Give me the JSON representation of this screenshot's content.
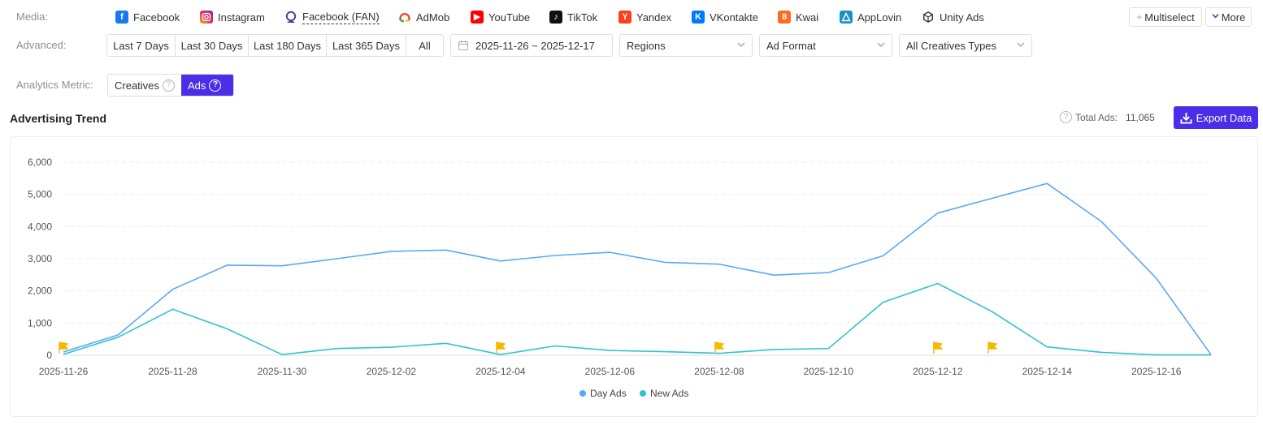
{
  "media": {
    "label": "Media:",
    "items": [
      {
        "key": "facebook",
        "label": "Facebook",
        "icon": "facebook-icon",
        "color": "#1877f2",
        "glyph": "f"
      },
      {
        "key": "instagram",
        "label": "Instagram",
        "icon": "instagram-icon",
        "color": "#e1306c",
        "glyph": "◎"
      },
      {
        "key": "facebook-fan",
        "label": "Facebook (FAN)",
        "icon": "fan-icon",
        "color": "#4b3f9e",
        "glyph": ""
      },
      {
        "key": "admob",
        "label": "AdMob",
        "icon": "admob-icon",
        "color": "#ea4335",
        "glyph": ""
      },
      {
        "key": "youtube",
        "label": "YouTube",
        "icon": "youtube-icon",
        "color": "#ff0000",
        "glyph": "▶"
      },
      {
        "key": "tiktok",
        "label": "TikTok",
        "icon": "tiktok-icon",
        "color": "#111111",
        "glyph": "♪"
      },
      {
        "key": "yandex",
        "label": "Yandex",
        "icon": "yandex-icon",
        "color": "#fc3f1d",
        "glyph": "Y"
      },
      {
        "key": "vkontakte",
        "label": "VKontakte",
        "icon": "vk-icon",
        "color": "#0077ff",
        "glyph": "K"
      },
      {
        "key": "kwai",
        "label": "Kwai",
        "icon": "kwai-icon",
        "color": "#ff6a1f",
        "glyph": "8"
      },
      {
        "key": "applovin",
        "label": "AppLovin",
        "icon": "applovin-icon",
        "color": "#1c8fc9",
        "glyph": "▲"
      },
      {
        "key": "unity",
        "label": "Unity Ads",
        "icon": "unity-icon",
        "color": "#222222",
        "glyph": "◁"
      }
    ],
    "multiselect_label": "Multiselect",
    "more_label": "More"
  },
  "advanced": {
    "label": "Advanced:",
    "ranges": [
      "Last 7 Days",
      "Last 30 Days",
      "Last 180 Days",
      "Last 365 Days",
      "All"
    ],
    "date_range": "2025-11-26 ~ 2025-12-17",
    "regions": "Regions",
    "ad_format": "Ad Format",
    "creative_types": "All Creatives Types"
  },
  "metric": {
    "label": "Analytics Metric:",
    "creatives_label": "Creatives",
    "ads_label": "Ads",
    "active": "ads"
  },
  "trend": {
    "title": "Advertising Trend",
    "total_label": "Total Ads:",
    "total_value": "11,065",
    "export_label": "Export Data"
  },
  "colors": {
    "accent": "#4a2ee8",
    "day_ads": "#5aa9f5",
    "new_ads": "#2fc4cc",
    "flag": "#f5b800"
  },
  "chart_data": {
    "type": "line",
    "x": [
      "2025-11-26",
      "2025-11-27",
      "2025-11-28",
      "2025-11-29",
      "2025-11-30",
      "2025-12-01",
      "2025-12-02",
      "2025-12-03",
      "2025-12-04",
      "2025-12-05",
      "2025-12-06",
      "2025-12-07",
      "2025-12-08",
      "2025-12-09",
      "2025-12-10",
      "2025-12-11",
      "2025-12-12",
      "2025-12-13",
      "2025-12-14",
      "2025-12-15",
      "2025-12-16",
      "2025-12-17"
    ],
    "x_tick_labels": [
      "2025-11-26",
      "2025-11-28",
      "2025-11-30",
      "2025-12-02",
      "2025-12-04",
      "2025-12-06",
      "2025-12-08",
      "2025-12-10",
      "2025-12-12",
      "2025-12-14",
      "2025-12-16"
    ],
    "y_ticks": [
      0,
      1000,
      2000,
      3000,
      4000,
      5000,
      6000
    ],
    "y_tick_labels": [
      "0",
      "1,000",
      "2,000",
      "3,000",
      "4,000",
      "5,000",
      "6,000"
    ],
    "ylim": [
      0,
      6000
    ],
    "grid": true,
    "legend_position": "bottom-center",
    "series": [
      {
        "name": "Day Ads",
        "values": [
          100,
          630,
          2050,
          2800,
          2780,
          3000,
          3230,
          3270,
          2930,
          3100,
          3200,
          2890,
          2830,
          2490,
          2570,
          3090,
          4420,
          4880,
          5340,
          4150,
          2390,
          20
        ]
      },
      {
        "name": "New Ads",
        "values": [
          30,
          560,
          1430,
          820,
          20,
          210,
          250,
          370,
          20,
          290,
          150,
          110,
          60,
          180,
          210,
          1650,
          2230,
          1350,
          260,
          90,
          10,
          10
        ]
      }
    ],
    "flags": [
      "2025-11-26",
      "2025-12-04",
      "2025-12-08",
      "2025-12-12",
      "2025-12-13"
    ]
  }
}
